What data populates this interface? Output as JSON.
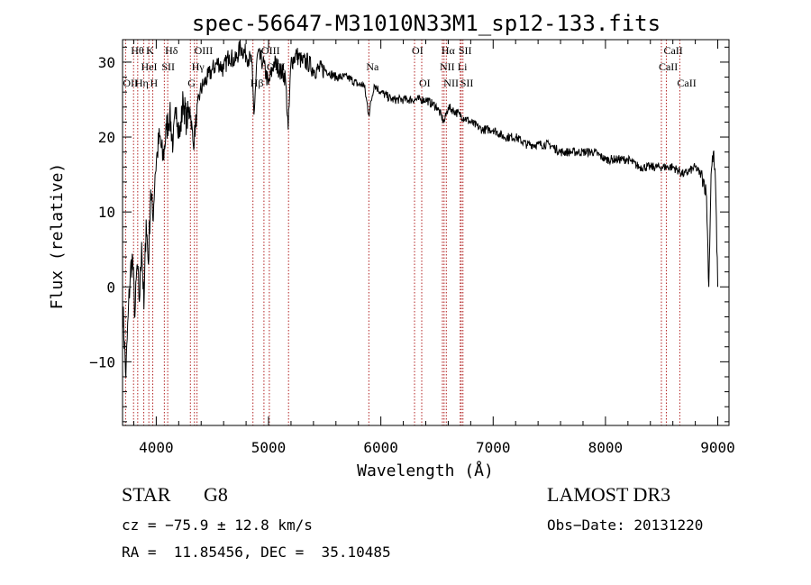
{
  "chart_data": {
    "type": "line",
    "title": "spec-56647-M31010N33M1_sp12-133.fits",
    "xlabel": "Wavelength (Å)",
    "ylabel": "Flux (relative)",
    "xlim": [
      3700,
      9100
    ],
    "ylim": [
      -18.5,
      33
    ],
    "xticks": [
      4000,
      5000,
      6000,
      7000,
      8000,
      9000
    ],
    "yticks": [
      -10,
      0,
      10,
      20,
      30
    ],
    "xtick_labels": [
      "4000",
      "5000",
      "6000",
      "7000",
      "8000",
      "9000"
    ],
    "ytick_labels": [
      "−10",
      "0",
      "10",
      "20",
      "30"
    ],
    "grid": false,
    "line_color": "#000000",
    "marker_color": "#b22222",
    "series": [
      {
        "x": [
          3700,
          3730,
          3750,
          3770,
          3790,
          3810,
          3830,
          3850,
          3870,
          3890,
          3910,
          3930,
          3950,
          3970,
          3990,
          4010,
          4030,
          4060,
          4090,
          4120,
          4150,
          4180,
          4210,
          4240,
          4270,
          4300,
          4330,
          4360,
          4390,
          4420,
          4460,
          4500,
          4550,
          4600,
          4650,
          4700,
          4750,
          4800,
          4850,
          4870,
          4900,
          4950,
          5000,
          5050,
          5100,
          5150,
          5175,
          5200,
          5250,
          5300,
          5350,
          5400,
          5500,
          5600,
          5700,
          5800,
          5850,
          5893,
          5940,
          6000,
          6100,
          6200,
          6300,
          6400,
          6500,
          6563,
          6600,
          6700,
          6800,
          6900,
          7000,
          7100,
          7200,
          7300,
          7400,
          7500,
          7600,
          7700,
          7800,
          7900,
          8000,
          8100,
          8200,
          8300,
          8400,
          8500,
          8600,
          8700,
          8800,
          8850,
          8880,
          8900,
          8920,
          8940,
          8960,
          8980,
          9000
        ],
        "y": [
          -2,
          -12,
          -4,
          2,
          4,
          -4,
          3,
          -2,
          6,
          -3,
          9,
          3,
          13,
          9,
          15,
          18,
          20,
          17,
          21,
          23,
          19,
          24,
          20,
          25,
          22,
          24,
          19,
          23,
          26,
          27,
          28,
          29,
          30,
          29,
          31,
          30,
          32,
          31,
          30,
          23,
          31,
          30,
          27,
          30,
          29,
          28,
          21,
          30,
          31,
          30,
          30,
          29,
          29,
          28,
          28,
          27,
          27,
          23,
          27,
          26,
          25,
          25,
          25,
          25,
          24,
          22,
          24,
          23,
          22,
          21,
          21,
          20,
          20,
          19,
          19,
          19,
          18,
          18,
          18,
          18,
          17,
          17,
          17,
          16,
          16,
          16,
          16,
          15,
          16,
          15,
          14,
          12,
          0,
          15,
          18,
          14,
          0
        ]
      }
    ],
    "lines": [
      {
        "x": 3727,
        "labels": [
          "OII"
        ],
        "rows": [
          2
        ]
      },
      {
        "x": 3798,
        "labels": [
          "Hθ"
        ],
        "rows": [
          0
        ]
      },
      {
        "x": 3835,
        "labels": [
          "Hη"
        ],
        "rows": [
          2
        ]
      },
      {
        "x": 3889,
        "labels": [
          "HeI"
        ],
        "rows": [
          1
        ]
      },
      {
        "x": 3934,
        "labels": [
          "K"
        ],
        "rows": [
          0
        ]
      },
      {
        "x": 3969,
        "labels": [
          "H"
        ],
        "rows": [
          2
        ]
      },
      {
        "x": 4072,
        "labels": [
          "SII"
        ],
        "rows": [
          1
        ]
      },
      {
        "x": 4102,
        "labels": [
          "Hδ"
        ],
        "rows": [
          0
        ]
      },
      {
        "x": 4304,
        "labels": [
          "G"
        ],
        "rows": [
          2
        ]
      },
      {
        "x": 4340,
        "labels": [
          "Hγ"
        ],
        "rows": [
          1
        ]
      },
      {
        "x": 4363,
        "labels": [
          "OIII"
        ],
        "rows": [
          0
        ]
      },
      {
        "x": 4861,
        "labels": [
          "Hβ"
        ],
        "rows": [
          2
        ]
      },
      {
        "x": 4959,
        "labels": [
          "OIII"
        ],
        "rows": [
          0
        ]
      },
      {
        "x": 5007,
        "labels": [
          "OIII"
        ],
        "rows": [
          1
        ]
      },
      {
        "x": 5178,
        "labels": [],
        "rows": []
      },
      {
        "x": 5893,
        "labels": [
          "Na"
        ],
        "rows": [
          1
        ]
      },
      {
        "x": 6300,
        "labels": [
          "OI"
        ],
        "rows": [
          0
        ]
      },
      {
        "x": 6364,
        "labels": [
          "OI"
        ],
        "rows": [
          2
        ]
      },
      {
        "x": 6548,
        "labels": [
          "NII"
        ],
        "rows": [
          1
        ]
      },
      {
        "x": 6563,
        "labels": [
          "Hα"
        ],
        "rows": [
          0
        ]
      },
      {
        "x": 6583,
        "labels": [
          "NII"
        ],
        "rows": [
          2
        ]
      },
      {
        "x": 6707,
        "labels": [
          "Li"
        ],
        "rows": [
          1
        ]
      },
      {
        "x": 6716,
        "labels": [
          "SII"
        ],
        "rows": [
          0
        ]
      },
      {
        "x": 6731,
        "labels": [
          "SII"
        ],
        "rows": [
          2
        ]
      },
      {
        "x": 8498,
        "labels": [
          "CaII"
        ],
        "rows": [
          1
        ]
      },
      {
        "x": 8542,
        "labels": [
          "CaII"
        ],
        "rows": [
          0
        ]
      },
      {
        "x": 8662,
        "labels": [
          "CaII"
        ],
        "rows": [
          2
        ]
      }
    ]
  },
  "footer": {
    "object_class": "STAR",
    "object_subclass": "G8",
    "survey": "LAMOST DR3",
    "velocity": "cz = −75.9 ± 12.8 km/s",
    "obs_date": "Obs−Date: 20131220",
    "coordinates": "RA =  11.85456, DEC =  35.10485"
  }
}
